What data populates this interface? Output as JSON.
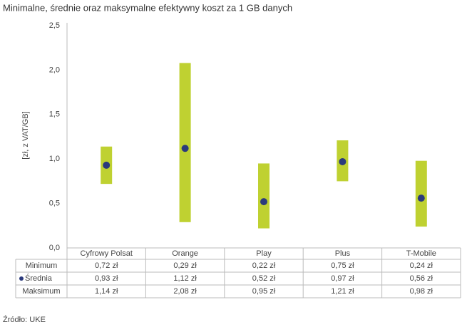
{
  "chart_data": {
    "type": "range",
    "title": "Minimalne, średnie oraz maksymalne efektywny koszt za 1 GB danych",
    "ylabel": "[zł, z VAT/GB]",
    "source": "Źródło: UKE",
    "categories": [
      "Cyfrowy Polsat",
      "Orange",
      "Play",
      "Plus",
      "T-Mobile"
    ],
    "bar_color": "#bfd131",
    "series": [
      {
        "name": "Minimum",
        "values": [
          0.72,
          0.29,
          0.22,
          0.75,
          0.24
        ],
        "value_labels": [
          "0,72 zł",
          "0,29 zł",
          "0,22 zł",
          "0,75 zł",
          "0,24 zł"
        ]
      },
      {
        "name": "Średnia",
        "color": "#2b3a7c",
        "values": [
          0.93,
          1.12,
          0.52,
          0.97,
          0.56
        ],
        "value_labels": [
          "0,93 zł",
          "1,12 zł",
          "0,52 zł",
          "0,97 zł",
          "0,56 zł"
        ]
      },
      {
        "name": "Maksimum",
        "values": [
          1.14,
          2.08,
          0.95,
          1.21,
          0.98
        ],
        "value_labels": [
          "1,14 zł",
          "2,08 zł",
          "0,95 zł",
          "1,21 zł",
          "0,98 zł"
        ]
      }
    ],
    "ylim": [
      0,
      2.5
    ],
    "yticks": [
      {
        "value": 0,
        "label": "0,0"
      },
      {
        "value": 0.5,
        "label": "0,5"
      },
      {
        "value": 1,
        "label": "1,0"
      },
      {
        "value": 1.5,
        "label": "1,5"
      },
      {
        "value": 2,
        "label": "2,0"
      },
      {
        "value": 2.5,
        "label": "2,5"
      }
    ]
  }
}
